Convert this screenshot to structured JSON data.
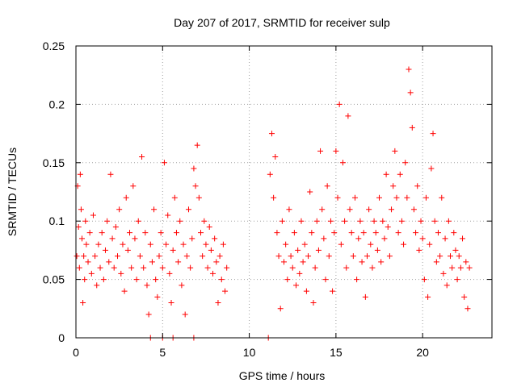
{
  "chart_data": {
    "type": "scatter",
    "title": "Day 207 of 2017, SRMTID for receiver sulp",
    "xlabel": "GPS time / hours",
    "ylabel": "SRMTID / TECUs",
    "xlim": [
      0,
      24
    ],
    "ylim": [
      0,
      0.25
    ],
    "xticks": [
      0,
      5,
      10,
      15,
      20
    ],
    "xtick_labels": [
      "0",
      "5",
      "10",
      "15",
      "20"
    ],
    "yticks": [
      0,
      0.05,
      0.1,
      0.15,
      0.2,
      0.25
    ],
    "ytick_labels": [
      "0",
      "0.05",
      "0.1",
      "0.15",
      "0.2",
      "0.25"
    ],
    "grid": true,
    "marker": "plus",
    "color": "#ff0000",
    "series": [
      {
        "name": "SRMTID",
        "points": [
          [
            0.05,
            0.07
          ],
          [
            0.1,
            0.13
          ],
          [
            0.15,
            0.095
          ],
          [
            0.2,
            0.06
          ],
          [
            0.25,
            0.14
          ],
          [
            0.3,
            0.11
          ],
          [
            0.35,
            0.085
          ],
          [
            0.4,
            0.03
          ],
          [
            0.45,
            0.07
          ],
          [
            0.5,
            0.05
          ],
          [
            0.55,
            0.1
          ],
          [
            0.6,
            0.08
          ],
          [
            0.7,
            0.065
          ],
          [
            0.8,
            0.09
          ],
          [
            0.9,
            0.055
          ],
          [
            1.0,
            0.105
          ],
          [
            1.1,
            0.07
          ],
          [
            1.2,
            0.045
          ],
          [
            1.3,
            0.08
          ],
          [
            1.4,
            0.06
          ],
          [
            1.5,
            0.09
          ],
          [
            1.6,
            0.05
          ],
          [
            1.7,
            0.075
          ],
          [
            1.8,
            0.1
          ],
          [
            1.9,
            0.065
          ],
          [
            2.0,
            0.14
          ],
          [
            2.1,
            0.085
          ],
          [
            2.2,
            0.06
          ],
          [
            2.3,
            0.095
          ],
          [
            2.4,
            0.07
          ],
          [
            2.5,
            0.11
          ],
          [
            2.6,
            0.055
          ],
          [
            2.7,
            0.08
          ],
          [
            2.8,
            0.04
          ],
          [
            2.9,
            0.12
          ],
          [
            3.0,
            0.075
          ],
          [
            3.1,
            0.09
          ],
          [
            3.2,
            0.06
          ],
          [
            3.3,
            0.13
          ],
          [
            3.4,
            0.085
          ],
          [
            3.5,
            0.05
          ],
          [
            3.6,
            0.1
          ],
          [
            3.7,
            0.07
          ],
          [
            3.8,
            0.155
          ],
          [
            3.9,
            0.06
          ],
          [
            4.0,
            0.09
          ],
          [
            4.1,
            0.045
          ],
          [
            4.2,
            0.02
          ],
          [
            4.3,
            0.08
          ],
          [
            4.4,
            0.065
          ],
          [
            4.5,
            0.11
          ],
          [
            4.6,
            0.05
          ],
          [
            4.7,
            0.035
          ],
          [
            4.8,
            0.07
          ],
          [
            4.9,
            0.09
          ],
          [
            5.0,
            0.06
          ],
          [
            5.1,
            0.15
          ],
          [
            5.2,
            0.08
          ],
          [
            5.3,
            0.105
          ],
          [
            5.4,
            0.055
          ],
          [
            5.5,
            0.03
          ],
          [
            5.6,
            0.075
          ],
          [
            5.7,
            0.12
          ],
          [
            5.8,
            0.09
          ],
          [
            5.9,
            0.065
          ],
          [
            6.0,
            0.1
          ],
          [
            6.1,
            0.045
          ],
          [
            6.2,
            0.08
          ],
          [
            6.3,
            0.02
          ],
          [
            6.4,
            0.07
          ],
          [
            6.5,
            0.11
          ],
          [
            6.6,
            0.06
          ],
          [
            6.7,
            0.085
          ],
          [
            6.8,
            0.145
          ],
          [
            6.9,
            0.13
          ],
          [
            7.0,
            0.165
          ],
          [
            7.1,
            0.12
          ],
          [
            7.2,
            0.09
          ],
          [
            7.3,
            0.07
          ],
          [
            7.4,
            0.1
          ],
          [
            7.5,
            0.08
          ],
          [
            7.6,
            0.06
          ],
          [
            7.7,
            0.095
          ],
          [
            7.8,
            0.075
          ],
          [
            7.9,
            0.055
          ],
          [
            8.0,
            0.085
          ],
          [
            8.1,
            0.065
          ],
          [
            8.2,
            0.03
          ],
          [
            8.3,
            0.07
          ],
          [
            8.4,
            0.05
          ],
          [
            8.5,
            0.08
          ],
          [
            8.6,
            0.04
          ],
          [
            8.7,
            0.06
          ],
          [
            11.2,
            0.14
          ],
          [
            11.3,
            0.175
          ],
          [
            11.4,
            0.12
          ],
          [
            11.5,
            0.155
          ],
          [
            11.6,
            0.09
          ],
          [
            11.7,
            0.07
          ],
          [
            11.8,
            0.025
          ],
          [
            11.9,
            0.1
          ],
          [
            12.0,
            0.065
          ],
          [
            12.1,
            0.08
          ],
          [
            12.2,
            0.05
          ],
          [
            12.3,
            0.11
          ],
          [
            12.4,
            0.07
          ],
          [
            12.5,
            0.06
          ],
          [
            12.6,
            0.09
          ],
          [
            12.7,
            0.045
          ],
          [
            12.8,
            0.075
          ],
          [
            12.9,
            0.055
          ],
          [
            13.0,
            0.1
          ],
          [
            13.1,
            0.065
          ],
          [
            13.2,
            0.08
          ],
          [
            13.3,
            0.04
          ],
          [
            13.4,
            0.07
          ],
          [
            13.5,
            0.125
          ],
          [
            13.6,
            0.09
          ],
          [
            13.7,
            0.03
          ],
          [
            13.8,
            0.06
          ],
          [
            13.9,
            0.1
          ],
          [
            14.0,
            0.075
          ],
          [
            14.1,
            0.16
          ],
          [
            14.2,
            0.11
          ],
          [
            14.3,
            0.085
          ],
          [
            14.4,
            0.05
          ],
          [
            14.5,
            0.13
          ],
          [
            14.6,
            0.07
          ],
          [
            14.7,
            0.1
          ],
          [
            14.8,
            0.04
          ],
          [
            14.9,
            0.09
          ],
          [
            15.0,
            0.16
          ],
          [
            15.1,
            0.12
          ],
          [
            15.2,
            0.2
          ],
          [
            15.3,
            0.08
          ],
          [
            15.4,
            0.15
          ],
          [
            15.5,
            0.1
          ],
          [
            15.6,
            0.06
          ],
          [
            15.7,
            0.19
          ],
          [
            15.8,
            0.11
          ],
          [
            15.9,
            0.09
          ],
          [
            16.0,
            0.07
          ],
          [
            16.1,
            0.12
          ],
          [
            16.2,
            0.05
          ],
          [
            16.3,
            0.085
          ],
          [
            16.4,
            0.1
          ],
          [
            16.5,
            0.065
          ],
          [
            16.6,
            0.09
          ],
          [
            16.7,
            0.035
          ],
          [
            16.8,
            0.07
          ],
          [
            16.9,
            0.11
          ],
          [
            17.0,
            0.08
          ],
          [
            17.1,
            0.06
          ],
          [
            17.2,
            0.1
          ],
          [
            17.3,
            0.09
          ],
          [
            17.4,
            0.075
          ],
          [
            17.5,
            0.12
          ],
          [
            17.6,
            0.065
          ],
          [
            17.7,
            0.1
          ],
          [
            17.8,
            0.085
          ],
          [
            17.9,
            0.14
          ],
          [
            18.0,
            0.095
          ],
          [
            18.1,
            0.07
          ],
          [
            18.2,
            0.11
          ],
          [
            18.3,
            0.13
          ],
          [
            18.4,
            0.16
          ],
          [
            18.5,
            0.12
          ],
          [
            18.6,
            0.09
          ],
          [
            18.7,
            0.14
          ],
          [
            18.8,
            0.1
          ],
          [
            18.9,
            0.08
          ],
          [
            19.0,
            0.15
          ],
          [
            19.1,
            0.12
          ],
          [
            19.2,
            0.23
          ],
          [
            19.3,
            0.21
          ],
          [
            19.4,
            0.18
          ],
          [
            19.5,
            0.11
          ],
          [
            19.6,
            0.09
          ],
          [
            19.7,
            0.13
          ],
          [
            19.8,
            0.075
          ],
          [
            19.9,
            0.1
          ],
          [
            20.0,
            0.085
          ],
          [
            20.1,
            0.05
          ],
          [
            20.2,
            0.12
          ],
          [
            20.3,
            0.035
          ],
          [
            20.4,
            0.08
          ],
          [
            20.5,
            0.145
          ],
          [
            20.6,
            0.175
          ],
          [
            20.7,
            0.1
          ],
          [
            20.8,
            0.065
          ],
          [
            20.9,
            0.09
          ],
          [
            21.0,
            0.07
          ],
          [
            21.1,
            0.12
          ],
          [
            21.2,
            0.055
          ],
          [
            21.3,
            0.085
          ],
          [
            21.4,
            0.045
          ],
          [
            21.5,
            0.1
          ],
          [
            21.6,
            0.07
          ],
          [
            21.7,
            0.06
          ],
          [
            21.8,
            0.09
          ],
          [
            21.9,
            0.075
          ],
          [
            22.0,
            0.05
          ],
          [
            22.1,
            0.07
          ],
          [
            22.2,
            0.06
          ],
          [
            22.3,
            0.085
          ],
          [
            22.4,
            0.035
          ],
          [
            22.5,
            0.065
          ],
          [
            22.6,
            0.025
          ],
          [
            22.7,
            0.06
          ],
          [
            4.3,
            0
          ],
          [
            5.0,
            0
          ],
          [
            5.6,
            0
          ],
          [
            6.8,
            0
          ],
          [
            11.1,
            0
          ]
        ]
      }
    ]
  }
}
